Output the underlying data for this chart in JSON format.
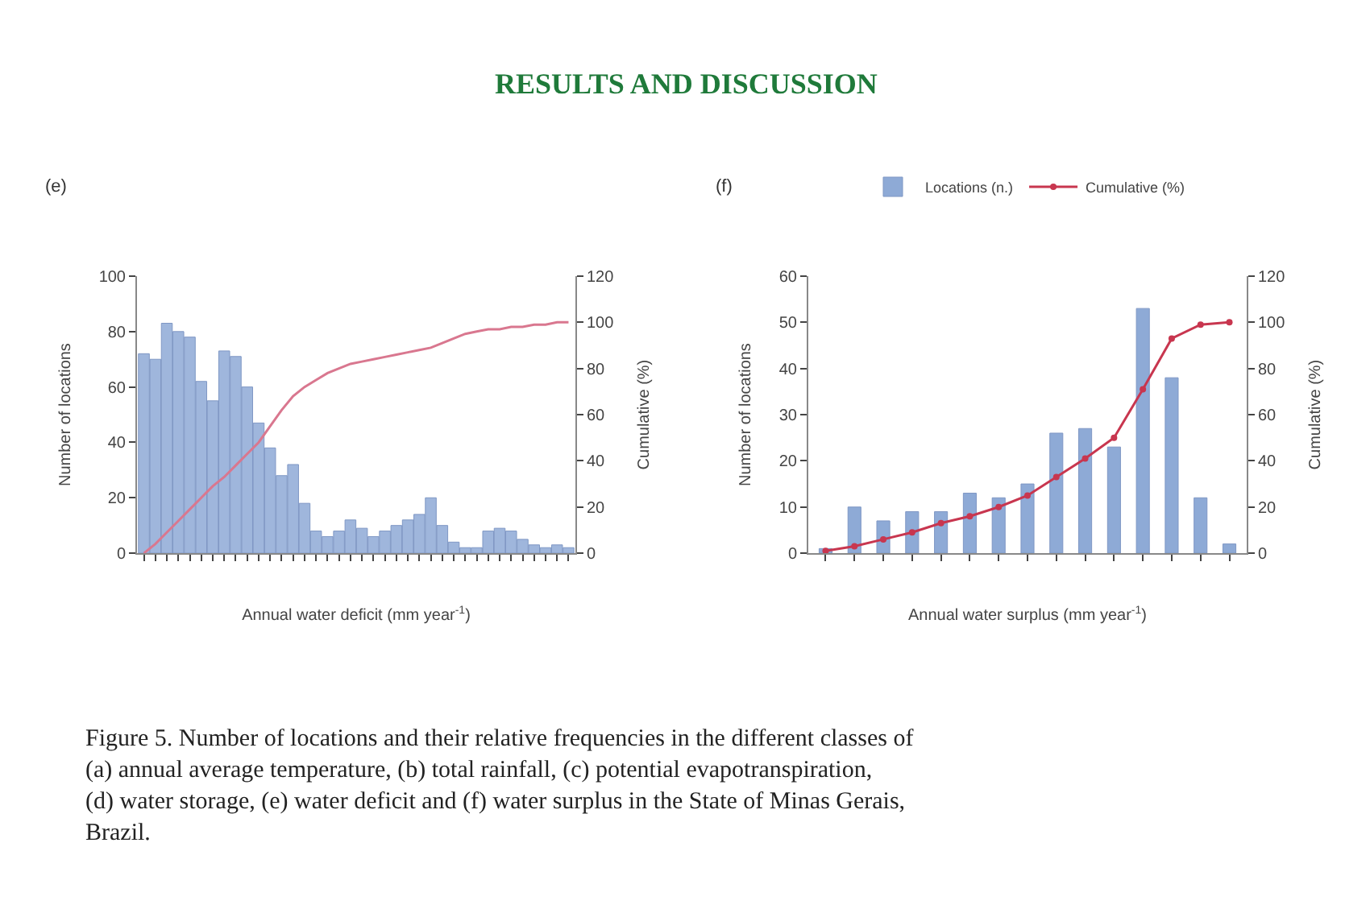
{
  "chart_data": [
    {
      "type": "bar",
      "title": "(e)",
      "xlabel": "Annual water deficit (mm year$^{-1}$)",
      "ylabel": "Number of locations",
      "y2label": "Cumulative (%)",
      "annotations": [
        "RESULTS AND DISCUSSION"
      ],
      "categories": [
        null,
        null,
        null,
        null,
        null,
        null,
        null,
        null,
        null,
        null,
        null,
        null,
        null,
        null,
        null,
        null,
        null,
        null,
        null,
        null,
        null,
        null,
        null,
        null,
        null,
        null,
        null,
        null,
        null,
        null,
        null,
        null,
        null,
        null,
        null,
        null,
        null,
        null
      ],
      "series": [
        {
          "color": "#9fb6dc",
          "values": [
            72,
            70,
            83,
            80,
            78,
            62,
            55,
            73,
            71,
            60,
            47,
            38,
            28,
            32,
            18,
            8,
            6,
            8,
            12,
            9,
            6,
            8,
            10,
            12,
            14,
            20,
            10,
            4,
            2,
            2,
            8,
            9,
            8,
            5,
            3,
            2,
            3,
            2
          ]
        },
        {
          "type": "line",
          "axis": "y2",
          "color": "#d9778f",
          "values": [
            0,
            4,
            9,
            14,
            19,
            24,
            29,
            33,
            38,
            43,
            48,
            55,
            62,
            68,
            72,
            75,
            78,
            80,
            82,
            83,
            84,
            85,
            86,
            87,
            88,
            89,
            91,
            93,
            95,
            96,
            97,
            97,
            98,
            98,
            99,
            99,
            100,
            100
          ]
        }
      ],
      "ylim": [
        0,
        100
      ],
      "yticks": [
        0,
        20,
        40,
        60,
        80,
        100
      ],
      "y2lim": [
        0,
        120
      ],
      "y2ticks": [
        0,
        20,
        40,
        60,
        80,
        100,
        120
      ],
      "legend": false,
      "marker": "none"
    },
    {
      "type": "bar",
      "title": "(f)",
      "xlabel": "Annual water surplus (mm year$^{-1}$)",
      "ylabel": "Number of locations",
      "y2label": "Cumulative (%)",
      "annotations": [
        "Figure 5. Number of locations and their relative frequencies in the different classes of (a) annual average temperature, (b) total rainfall, (c) potential evapotranspiration, (d) water storage, (e) water deficit and (f) water surplus in the State of Minas Gerais, Brazil."
      ],
      "categories": [
        null,
        null,
        null,
        null,
        null,
        null,
        null,
        null,
        null,
        null,
        null,
        null,
        null,
        null,
        null
      ],
      "series": [
        {
          "name": "Locations (n.)",
          "color": "#8eaad6",
          "values": [
            1,
            10,
            7,
            9,
            9,
            13,
            12,
            15,
            26,
            27,
            23,
            53,
            38,
            12,
            2
          ]
        },
        {
          "name": "Cumulative (%)",
          "type": "line",
          "axis": "y2",
          "color": "#c8364f",
          "values": [
            1,
            3,
            6,
            9,
            13,
            16,
            20,
            25,
            33,
            41,
            50,
            71,
            93,
            99,
            100
          ]
        }
      ],
      "ylim": [
        0,
        60
      ],
      "yticks": [
        0,
        10,
        20,
        30,
        40,
        50,
        60
      ],
      "y2lim": [
        0,
        120
      ],
      "y2ticks": [
        0,
        20,
        40,
        60,
        80,
        100,
        120
      ],
      "legend": "top",
      "marker": "circle"
    }
  ]
}
